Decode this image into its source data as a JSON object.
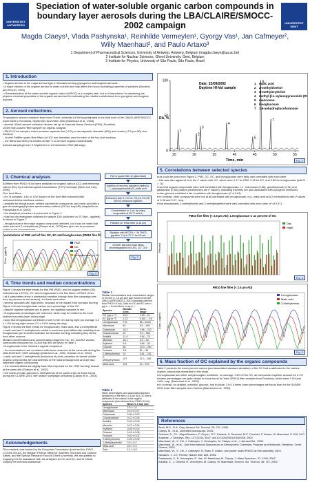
{
  "header": {
    "title": "Speciation of water-soluble organic carbon compounds in boundary layer aerosols during the LBA/CLAIRE/SMOCC-2002 campaign",
    "authors": "Magda Claeys¹, Vlada Pashynska¹, Reinhilde Vermeylen¹, Gyorgy Vas¹, Jan Cafmeyer², Willy Maenhaut², and Paulo Artaxo³",
    "affiliations": [
      "1 Department of Pharmaceutical Sciences, University of Antwerp, Antwerp, Belgium (magda.claeys@ua.ac.be)",
      "2 Institute for Nuclear Sciences, Ghent University, Gent, Belgium",
      "3 Institute for Physics, University of São Paulo, São Paulo, Brazil"
    ],
    "logo_left": "UNIVERSITEIT ANTWERPEN",
    "logo_right": "UNIVERSITEIT GENT"
  },
  "sections": {
    "intro": {
      "heading": "1. Introduction",
      "paragraphs": [
        "• Organic aerosol is the major aerosol type in biomass burning (pyrogenic) and biogenic aerosols",
        "• A major fraction of the organic aerosol is water-soluble and may affect the cloud-nucleating properties of particles (Novakov and Penner, 1993)",
        "• Characterisation of the water-soluble organic carbon (WSOC) is a complex task, but is of importance for assessing the physico-chemical properties of the organic aerosol and for estimating the relative contributions from pyrogenic and biogenic sources"
      ]
    },
    "aerosol": {
      "heading": "2. Aerosol collections",
      "paragraphs": [
        "Tropospheric aerosol research team from Ghent University (UGent) participated in the field work of the LBA/CLAIRE/SMOCC experiment in Rondônia, September-November 2002 [Maenhaut et al., 2003]",
        "• several UGent aerosol collection devices set up at Fazenda Nossa Senhora (FNS), Rondônia",
        "UGent high-volume filter sampler for organic analysis",
        "• PM10 Hi-Vol sampler, which provides separate fine (<2.5 µm aerodynamic diameter (AD)) and coarse (>2.5 µm AD) size fractions",
        "  – double Pallflex quartz fibre filters (of 102 mm diameter) used for each of the two size fractions",
        "  – the filters had been pre-heated at 550 °C to remove organic contaminants",
        "Aerosol samplings from 9 September to 14 November 2002 (66 days)"
      ]
    },
    "chemical": {
      "heading": "3. Chemical analyses",
      "paragraphs": [
        "All filters from PM10 Hi-Vol were analysed for organic carbon (OC) and elemental carbon (EC) by a thermal-optical transmission (TOT) technique [Birch and Cary, 1996]",
        "Fine front filters",
        "• for 74 samples: 1/16 or 1/32 fraction of the front filter extracted with methanol:dichloromethane mixture",
        "• analysis for levoglucosan, related saccharidic compounds, and malic acid with a gas chromatography/mass spectrometry method (GC/ion trap MS) adapted from Pashynska et al. [2002]",
        "• the analytical procedure is presented in Figure 1",
        "• total ion chromatogram obtained for sample 15D (collected on 23 Sept., daytime) is shown in Figure 2",
        "  – levoglucosan is the major organic compound detected, but it can be noted that malic acid and 2-methyltetrols [Claeys et al., 2003] also give rise to prominent peaks in the chromatogram"
      ]
    },
    "time_trends": {
      "heading": "4. Time trends and median concentrations",
      "paragraphs": [
        "Figure 3 shows the time trends for fine PM (PM2), and for organic matter (OM, estimated as 1.8*OC), EC, and levoglucosan in the fine filters of PM10 Hi-Vol",
        "• all 4 parameters show a substantial variation through time (the campaign was from dry season to wet season), but track each other",
        "• several episodes with high levels, because of the impact from biomass burning",
        "Figure 4 shows levoglucosan carbon as a percentage of fine OC",
        "• data for daytime samples are in green, for nighttime samples in red",
        "• levoglucosan percentages are observed, which may be related to the more shallow boundary layer during night",
        "• clear that levoglucosan contributes more to the OC during night (on average 3.3 ± 1.0% during night versus 2.0 ± 0.6% during the day)",
        "Figure 5 shows the time trends for levoglucosan, malic acid, and 2-methyltetrols",
        "• malic acid and 2-methyltetrols exhibit a much less (and differently variability than levoglucosan (an excellent indicator for biomass burning) indicating they derive from other sources",
        "Median concentrations and concentration ranges for OC, EC, and the various compounds measured by GC/ion trap MS are given in Table 1",
        "• levoglucosan is the dominant organic compound",
        "  – its concentrations are consistent with those observed at the same site during the LBA-EUSTACH 1999 campaign [Graham et al., 2002; Graham et al., 2002]",
        "• malic acid and 2-methyltetrols (indicators of photo-oxidation of natural volatile organic compounds) are characteristic of the natural background and are also important organic compounds",
        "  – the concentrations are slightly lower than reported for the 1999 'burning' season at the same site [Graham et al., 2002]",
        "• the levels of malic acid and 2-methyltetrols of the same order as those found during the CLAIRE-2001 'wet' season campaign at Balbina [Claeys et al., 2003]"
      ]
    },
    "correlations": {
      "heading": "5. Correlations between selected species",
      "paragraphs": [
        "● as could be seen from Figure 3, PM2, OC, EC, and levoglucosan were fairly well correlated with each other",
        "  – this was also apparent from the r² values with OC, which were 0.97 for PM2, 0.92 for EC, and 0.86 for levoglucosan (with N = 74)",
        "● several organic compounds were well correlated with levoglucosan, i.e., mannosan (0.86), glucofuranose (0.91) and galactosan (0.80) (data in parentheses are r² values), indicating that they are also associated with pyrogenic emissions",
        "● also glucose exhibited a fair correlation with levoglucosan (r² of 0.61)",
        "● in contrast, other compounds were not at all correlated with levoglucosan, e.g., malic acid and 2-methyltetrols with r² values of 0.08 and 0.07, resp.",
        "● the enantiomeric 2-methylthreitol and 2-methylerythritol were well correlated with each other (r² of 0.97)"
      ]
    },
    "mass_fraction": {
      "heading": "6. Mass fraction of OC explained by the organic compounds",
      "paragraphs": [
        "Table 2 presents the mean percent carbon (and associated standard deviation) of the OC that is attributed to the various organic compounds measured in this study",
        "● levoglucosan and other anhydrosugars contribute, on average, 2.8% of the OC; all compounds together account for 4.1%",
        "● these percentages are quite similar to those found for 'total' (PM10) filter samples from Rondônia, which were 2.9% and 4.8%, resp. [Maenhaut et al., 2002]",
        "● in contrast, for arabitol, mannitol, glucose, and fructose, 3 to 10 times lower percentages are found than for the SAFARI 2000 'total' filter samples from Zambia [Maenhaut et al., 2003]"
      ]
    },
    "acknowledgements": {
      "heading": "Acknowledgements",
      "paragraphs": [
        "This research was funded by the European Commission (contract No. EVK2-CT2001-00110), the Belgian Federal Office for Scientific Technical and Cultural Affairs, and the Special Research Fund of Ghent University. We are grateful to Xuguang Chi for assistance with the analyses for OC and EC, and to Sheila Dunphy for technical assistance."
      ]
    },
    "references": {
      "heading": "References",
      "paragraphs": [
        "Birch, M.E., R.A. Cary, Aerosol Sci. Technol. 25: 221, 1996.",
        "Claeys, M., et al., submitted manuscript, 2003.",
        "Graham, B., O.L. Mayol-Bracero, P. Guyon, G.C. Roberts, S. Decesari, M.C. Facchini, P. Artaxo, W. Maenhaut, P. Köll, M.O. Andreae, J. Geophys. Res. 107 (D20), 8047, doi:10.1029/2001JD000336, 2002.",
        "Maenhaut, W., X. Chi, J. Cafmeyer, Y. Vermeylen, M. Claeys, et al., J. Aerosol Sci., 2002.",
        "Maenhaut, W., et al., Joint International Symposium on Atmospheric Chemistry, Program and Abstracts, Heraklion, Crete, Greece, 2003.",
        "Maenhaut, W., X. Chi, J. Cafmeyer, N. Raes, P. Artaxo, see poster board P06/23 at this assembly, 2003.",
        "Novakov, T., J.E. Penner, Nature 365: 823, 1993.",
        "Pashynska, V., R. Vermeylen, G. Vas, W. Maenhaut, M. Claeys, J. Mass Spectrom. 37: 1249, 2002.",
        "Zdráhal, Z., J. Oliveira, R. Vermeylen, M. Claeys, W. Maenhaut, Environ. Sci. Technol. 36: 747, 2002."
      ]
    }
  },
  "flowchart": {
    "steps": [
      "Part of quartz filter (in glass flask)",
      "Addition of recovery standard (methyl β-L-xylanopyranoside) D₃-malic acid",
      "Extraction with 3 x 20 mL CH₂Cl₂:CH₃OH (80:20) ultrasonic agitation",
      "Concentration to 1 mL by rotary evaporation at 35 °C and N₂",
      "Filtration on Teflon filter (0.45 µm)",
      "Silylation with MSTFA + 1% TMCS (pyridine 1:1) at 70 °C for 60 min",
      "GC/MS: full scan mode Mass chromatographic m/z 204, 217, 319"
    ],
    "label": "Fig. 1"
  },
  "table_1": {
    "title": "Table 1",
    "caption": "Median concentrations and concentration ranges in the fine (< 2.5 µm AD) size fraction from the LBA/CLAIRE/SMOCC-2002 campaign (derived from PM10 Hi-Vol). Data for OC and EC are in µg m⁻³, for all others in ng m⁻³.",
    "columns": [
      "Species",
      "Median conc.",
      "Conc. range"
    ],
    "rows": [
      [
        "OC (µg m⁻³)",
        "15.0",
        "1.59 – 61"
      ],
      [
        "EC (µg m⁻³)",
        "1.23",
        "0.161 – 3.8"
      ],
      [
        "Levoglucosan",
        "770",
        "86 – 6100"
      ],
      [
        "Mannosan",
        "64",
        "6.0 – 440"
      ],
      [
        "Galactosan",
        "18.2",
        "1.96 – 210"
      ],
      [
        "Glucofuranose",
        "34",
        "3.3 – 360"
      ],
      [
        "Arabitol",
        "11.4",
        "0.94 – 78"
      ],
      [
        "Mannitol",
        "18.1",
        "3.2 – 43"
      ],
      [
        "Erythritol",
        "9.9",
        "0.84 – 30"
      ],
      [
        "Glucose",
        "58",
        "10.0 – 260"
      ],
      [
        "Fructose",
        "9.8",
        "DL – 36"
      ],
      [
        "2-Methylthreitol",
        "24",
        "0.81 – 241"
      ],
      [
        "2-Methylerythritol",
        "107",
        "11.0 – 280"
      ],
      [
        "Malic acid",
        "133",
        "20 – 570"
      ]
    ]
  },
  "table_2": {
    "title": "Table 2",
    "caption": "Mean percentages (and associated standard deviations) of the fine (<2.5 µm AD) OC that is attributed to the carbon in the organic compounds (data derived from PM10 Hi-Vol)",
    "columns": [
      "Species",
      "Mean % ± std. dev."
    ],
    "rows": [
      [
        "Levoglucosan",
        "2.5 ± 1.0"
      ],
      [
        "Mannosan",
        "0.19 ± 0.07"
      ],
      [
        "Galactosan",
        "0.06 ± 0.03"
      ],
      [
        "Glucofuranose",
        "0.12 ± 0.05"
      ],
      [
        "Arabitol",
        "0.04 ± 0.03"
      ],
      [
        "Mannitol",
        "0.07 ± 0.06"
      ],
      [
        "Erythritol",
        "0.03 ± 0.02"
      ],
      [
        "Glucose",
        "0.18 ± 0.06"
      ],
      [
        "Fructose",
        "0.03 ± 0.02"
      ],
      [
        "2-Methylthreitol",
        "0.09 ± 0.05"
      ],
      [
        "2-Methylerythritol",
        "0.3 ± 0.2"
      ],
      [
        "Malic acid",
        "0.6 ± 0.3"
      ],
      [
        "Sum",
        "4.1 ± 0.8"
      ]
    ]
  },
  "figure_2": {
    "label": "Fig. 2",
    "sample": "Date: 23/09/2002",
    "sample_note": "Daytime HI-Vol sample",
    "ylabel": "RA, %",
    "xlabel": "Time, min",
    "xlim": [
      24,
      56
    ],
    "xticks": [
      25,
      30,
      35,
      40,
      45,
      50,
      55
    ],
    "ylim": [
      0,
      100
    ],
    "yticks": [
      0,
      50,
      100
    ],
    "peaks": {
      "labels": [
        "1",
        "2",
        "3",
        "4",
        "5",
        "6",
        "7"
      ],
      "x": [
        26,
        30.5,
        31.5,
        38,
        44.5,
        46.5,
        49
      ],
      "values": [
        30,
        25,
        35,
        40,
        20,
        100,
        45
      ]
    },
    "legend": [
      "malic acid",
      "2-methylthreitol",
      "2-methylerythritol",
      "methyl-β-L-xylanopyranoside (RS)",
      "mannosan",
      "levoglucosan",
      "1,6-anhydroglucofuranose"
    ]
  },
  "figure_3": {
    "label": "Fig. 3",
    "title": "Concentrations of PM2 and of fine OC, EC and levoglucosan (PM10 fine filter)",
    "ylabel": "Conc. (µg/m³)",
    "legend": [
      "PM2",
      "OC",
      "EC",
      "Levoglucosan (x 10)"
    ],
    "colors": [
      "#1f3fbf",
      "#d22",
      "#2a2",
      "#e0a000"
    ]
  },
  "figure_4": {
    "label": "Fig. 4",
    "title": "PM10 fine filter (< 2.5 µm AD): Levoglucosan C as percent of OC",
    "ylabel": "Percent",
    "legend": [
      "Day",
      "Night"
    ],
    "colors": [
      "#2a9a2a",
      "#d22"
    ]
  },
  "figure_5": {
    "label": "Fig. 5",
    "title": "PM10 fine filter (< 2.5 µm AD)",
    "ylabel": "Conc. (ng/m³)",
    "legend": [
      "Levoglucosan",
      "Malic acid",
      "2-Methyltetrols"
    ],
    "colors": [
      "#1f3fbf",
      "#d22",
      "#2a2"
    ]
  }
}
